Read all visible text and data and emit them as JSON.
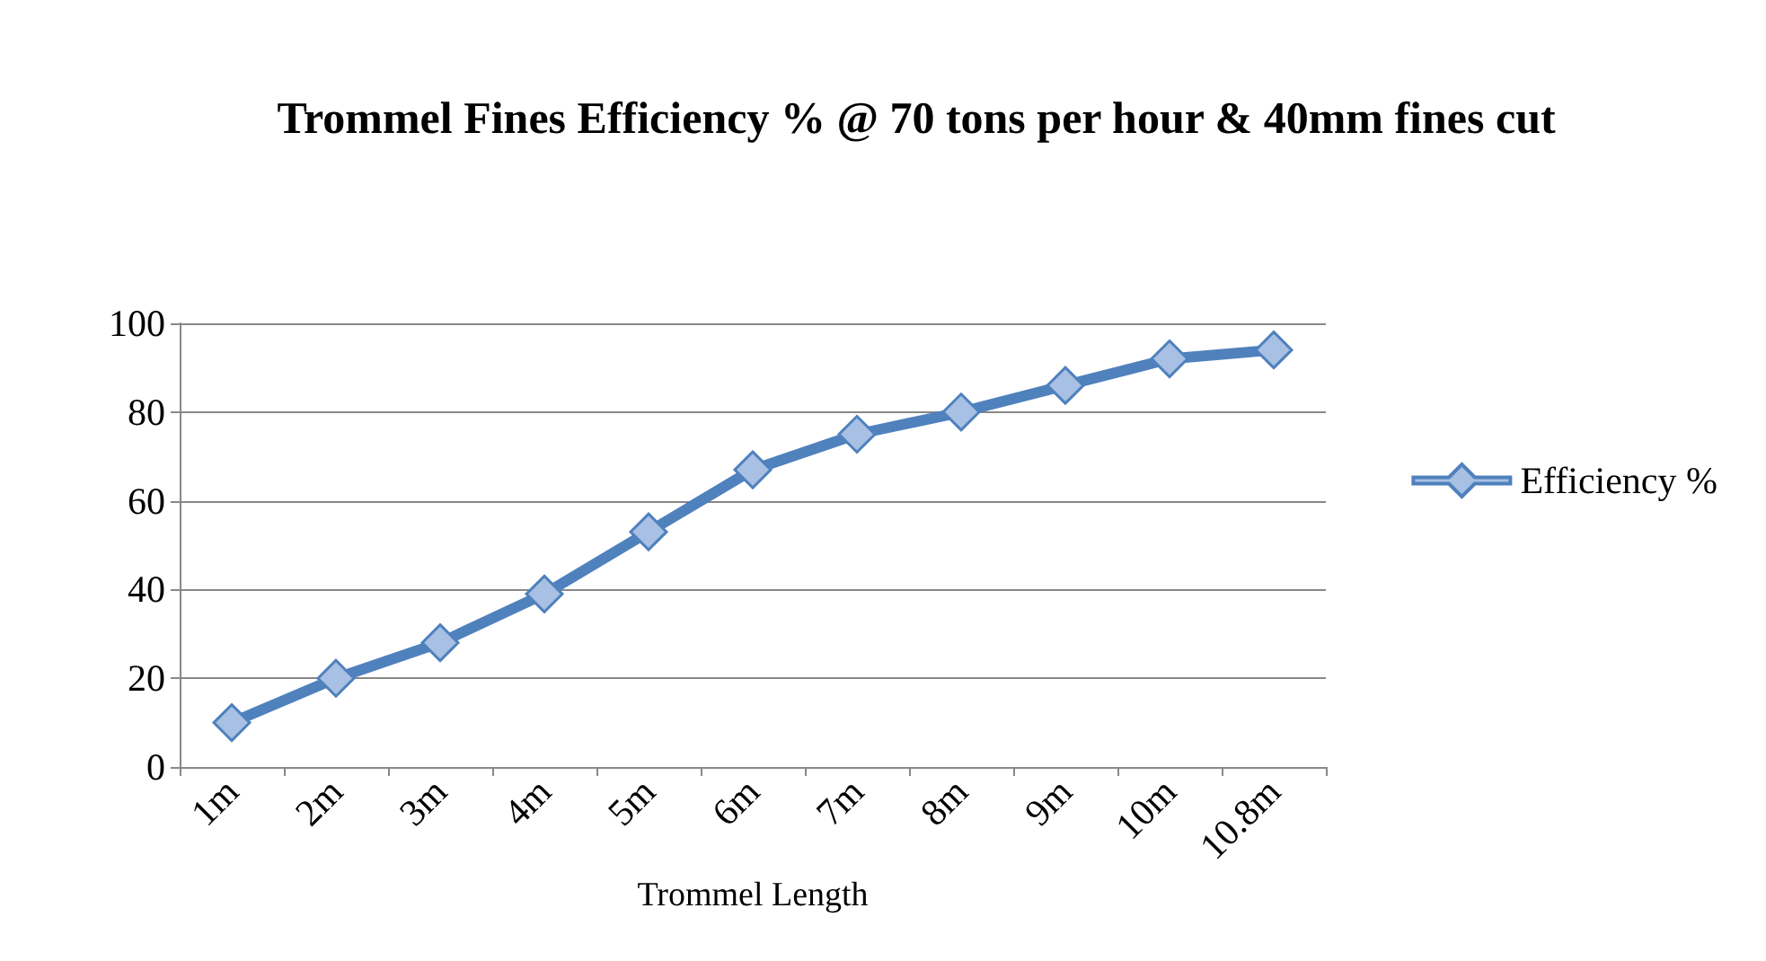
{
  "chart_data": {
    "type": "line",
    "title": "Trommel Fines Efficiency % @ 70 tons per hour & 40mm fines cut",
    "xlabel": "Trommel Length",
    "categories": [
      "1m",
      "2m",
      "3m",
      "4m",
      "5m",
      "6m",
      "7m",
      "8m",
      "9m",
      "10m",
      "10.8m"
    ],
    "series": [
      {
        "name": "Efficiency %",
        "color": "#4f81bd",
        "values": [
          10,
          20,
          28,
          39,
          53,
          67,
          75,
          80,
          86,
          92,
          94
        ]
      }
    ],
    "ylim": [
      0,
      100
    ],
    "yticks": [
      0,
      20,
      40,
      60,
      80,
      100
    ],
    "grid": "y",
    "legend": "right",
    "marker": "diamond",
    "line_style": "solid"
  }
}
